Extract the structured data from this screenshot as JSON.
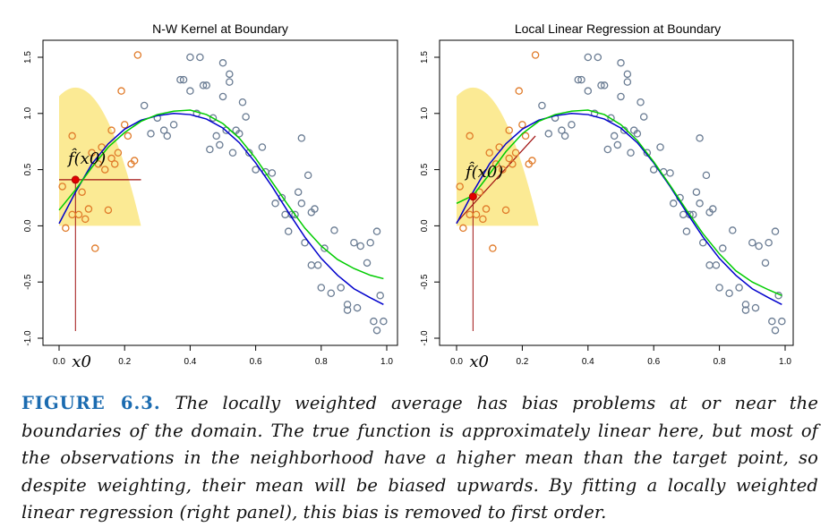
{
  "chart_data": [
    {
      "type": "scatter",
      "title": "N-W Kernel at Boundary",
      "xlabel": "",
      "ylabel": "",
      "xlim": [
        0.0,
        1.0
      ],
      "ylim": [
        -1.0,
        1.5
      ],
      "x_ticks": [
        "0.0",
        "0.2",
        "0.4",
        "0.6",
        "0.8",
        "1.0"
      ],
      "y_ticks": [
        "-1.0",
        "-0.5",
        "0.0",
        "0.5",
        "1.0",
        "1.5"
      ],
      "target_x": 0.05,
      "target_label": "x0",
      "fit_label": "f̂(x0)",
      "fit_value": 0.41,
      "kernel_peak": 1.23,
      "kernel_support": [
        0.0,
        0.25
      ],
      "kernel_color": "#fbea94",
      "fit_line": {
        "x": [
          0.0,
          0.25
        ],
        "y": [
          0.41,
          0.41
        ]
      },
      "fit_color": "#a01010",
      "curves": [
        {
          "color": "#0000cc",
          "x": [
            0.0,
            0.05,
            0.1,
            0.15,
            0.2,
            0.25,
            0.3,
            0.35,
            0.4,
            0.45,
            0.5,
            0.55,
            0.6,
            0.65,
            0.7,
            0.75,
            0.8,
            0.85,
            0.9,
            0.95,
            0.99
          ],
          "y": [
            0.02,
            0.3,
            0.55,
            0.73,
            0.86,
            0.94,
            0.98,
            1.0,
            0.99,
            0.95,
            0.87,
            0.74,
            0.56,
            0.35,
            0.12,
            -0.1,
            -0.29,
            -0.44,
            -0.56,
            -0.64,
            -0.7
          ]
        },
        {
          "color": "#00cc00",
          "x": [
            0.0,
            0.05,
            0.1,
            0.15,
            0.2,
            0.25,
            0.3,
            0.35,
            0.4,
            0.45,
            0.5,
            0.55,
            0.6,
            0.65,
            0.7,
            0.75,
            0.8,
            0.85,
            0.9,
            0.95,
            0.99
          ],
          "y": [
            0.14,
            0.32,
            0.52,
            0.7,
            0.83,
            0.93,
            0.99,
            1.02,
            1.03,
            0.99,
            0.91,
            0.78,
            0.6,
            0.39,
            0.18,
            -0.02,
            -0.18,
            -0.3,
            -0.38,
            -0.44,
            -0.47
          ]
        }
      ],
      "series": [
        {
          "color": "#e07b2a",
          "x": [
            0.01,
            0.02,
            0.04,
            0.04,
            0.06,
            0.07,
            0.08,
            0.09,
            0.1,
            0.11,
            0.12,
            0.13,
            0.14,
            0.15,
            0.16,
            0.16,
            0.17,
            0.18,
            0.19,
            0.2,
            0.21,
            0.22,
            0.23,
            0.24
          ],
          "y": [
            0.35,
            -0.02,
            0.8,
            0.1,
            0.1,
            0.3,
            0.06,
            0.15,
            0.65,
            -0.2,
            0.55,
            0.7,
            0.5,
            0.14,
            0.85,
            0.6,
            0.55,
            0.65,
            1.2,
            0.9,
            0.8,
            0.55,
            0.58,
            1.52
          ]
        },
        {
          "color": "#6a7c93",
          "x": [
            0.26,
            0.28,
            0.3,
            0.32,
            0.33,
            0.35,
            0.37,
            0.38,
            0.4,
            0.4,
            0.42,
            0.43,
            0.44,
            0.45,
            0.46,
            0.47,
            0.48,
            0.49,
            0.5,
            0.5,
            0.51,
            0.52,
            0.52,
            0.53,
            0.54,
            0.55,
            0.56,
            0.57,
            0.58,
            0.6,
            0.62,
            0.63,
            0.65,
            0.66,
            0.68,
            0.69,
            0.7,
            0.71,
            0.72,
            0.73,
            0.74,
            0.74,
            0.75,
            0.76,
            0.77,
            0.77,
            0.78,
            0.79,
            0.8,
            0.81,
            0.83,
            0.84,
            0.86,
            0.88,
            0.88,
            0.9,
            0.91,
            0.92,
            0.94,
            0.95,
            0.96,
            0.97,
            0.97,
            0.98,
            0.99
          ],
          "y": [
            1.07,
            0.82,
            0.96,
            0.85,
            0.8,
            0.9,
            1.3,
            1.3,
            1.5,
            1.2,
            1.0,
            1.5,
            1.25,
            1.25,
            0.68,
            0.96,
            0.8,
            0.72,
            1.15,
            1.45,
            0.85,
            1.35,
            1.28,
            0.65,
            0.85,
            0.82,
            1.1,
            0.97,
            0.65,
            0.5,
            0.7,
            0.48,
            0.47,
            0.2,
            0.25,
            0.1,
            -0.05,
            0.1,
            0.1,
            0.3,
            0.2,
            0.78,
            -0.15,
            0.45,
            -0.35,
            0.12,
            0.15,
            -0.35,
            -0.55,
            -0.2,
            -0.6,
            -0.04,
            -0.55,
            -0.7,
            -0.75,
            -0.15,
            -0.73,
            -0.18,
            -0.33,
            -0.15,
            -0.85,
            -0.05,
            -0.93,
            -0.62,
            -0.85
          ]
        }
      ]
    },
    {
      "type": "scatter",
      "title": "Local Linear Regression at Boundary",
      "xlabel": "",
      "ylabel": "",
      "xlim": [
        0.0,
        1.0
      ],
      "ylim": [
        -1.0,
        1.5
      ],
      "x_ticks": [
        "0.0",
        "0.2",
        "0.4",
        "0.6",
        "0.8",
        "1.0"
      ],
      "y_ticks": [
        "-1.0",
        "-0.5",
        "0.0",
        "0.5",
        "1.0",
        "1.5"
      ],
      "target_x": 0.05,
      "target_label": "x0",
      "fit_label": "f̂(x0)",
      "fit_value": 0.26,
      "kernel_peak": 1.23,
      "kernel_support": [
        0.0,
        0.25
      ],
      "kernel_color": "#fbea94",
      "fit_line": {
        "x": [
          0.0,
          0.24
        ],
        "y": [
          0.03,
          0.8
        ]
      },
      "fit_color": "#a01010",
      "curves": [
        {
          "color": "#0000cc",
          "x": [
            0.0,
            0.05,
            0.1,
            0.15,
            0.2,
            0.25,
            0.3,
            0.35,
            0.4,
            0.45,
            0.5,
            0.55,
            0.6,
            0.65,
            0.7,
            0.75,
            0.8,
            0.85,
            0.9,
            0.95,
            0.99
          ],
          "y": [
            0.02,
            0.3,
            0.55,
            0.73,
            0.86,
            0.94,
            0.98,
            1.0,
            0.99,
            0.95,
            0.87,
            0.74,
            0.56,
            0.35,
            0.12,
            -0.1,
            -0.29,
            -0.44,
            -0.56,
            -0.64,
            -0.7
          ]
        },
        {
          "color": "#00cc00",
          "x": [
            0.0,
            0.05,
            0.1,
            0.15,
            0.2,
            0.25,
            0.3,
            0.35,
            0.4,
            0.45,
            0.5,
            0.55,
            0.6,
            0.65,
            0.7,
            0.75,
            0.8,
            0.85,
            0.9,
            0.95,
            0.99
          ],
          "y": [
            0.2,
            0.27,
            0.46,
            0.66,
            0.82,
            0.93,
            0.99,
            1.02,
            1.03,
            0.99,
            0.9,
            0.76,
            0.57,
            0.36,
            0.14,
            -0.07,
            -0.25,
            -0.4,
            -0.5,
            -0.57,
            -0.62
          ]
        }
      ],
      "series": [
        {
          "color": "#e07b2a",
          "x": [
            0.01,
            0.02,
            0.04,
            0.04,
            0.06,
            0.07,
            0.08,
            0.09,
            0.1,
            0.11,
            0.12,
            0.13,
            0.14,
            0.15,
            0.16,
            0.16,
            0.17,
            0.18,
            0.19,
            0.2,
            0.21,
            0.22,
            0.23,
            0.24
          ],
          "y": [
            0.35,
            -0.02,
            0.8,
            0.1,
            0.1,
            0.3,
            0.06,
            0.15,
            0.65,
            -0.2,
            0.55,
            0.7,
            0.5,
            0.14,
            0.85,
            0.6,
            0.55,
            0.65,
            1.2,
            0.9,
            0.8,
            0.55,
            0.58,
            1.52
          ]
        },
        {
          "color": "#6a7c93",
          "x": [
            0.26,
            0.28,
            0.3,
            0.32,
            0.33,
            0.35,
            0.37,
            0.38,
            0.4,
            0.4,
            0.42,
            0.43,
            0.44,
            0.45,
            0.46,
            0.47,
            0.48,
            0.49,
            0.5,
            0.5,
            0.51,
            0.52,
            0.52,
            0.53,
            0.54,
            0.55,
            0.56,
            0.57,
            0.58,
            0.6,
            0.62,
            0.63,
            0.65,
            0.66,
            0.68,
            0.69,
            0.7,
            0.71,
            0.72,
            0.73,
            0.74,
            0.74,
            0.75,
            0.76,
            0.77,
            0.77,
            0.78,
            0.79,
            0.8,
            0.81,
            0.83,
            0.84,
            0.86,
            0.88,
            0.88,
            0.9,
            0.91,
            0.92,
            0.94,
            0.95,
            0.96,
            0.97,
            0.97,
            0.98,
            0.99
          ],
          "y": [
            1.07,
            0.82,
            0.96,
            0.85,
            0.8,
            0.9,
            1.3,
            1.3,
            1.5,
            1.2,
            1.0,
            1.5,
            1.25,
            1.25,
            0.68,
            0.96,
            0.8,
            0.72,
            1.15,
            1.45,
            0.85,
            1.35,
            1.28,
            0.65,
            0.85,
            0.82,
            1.1,
            0.97,
            0.65,
            0.5,
            0.7,
            0.48,
            0.47,
            0.2,
            0.25,
            0.1,
            -0.05,
            0.1,
            0.1,
            0.3,
            0.2,
            0.78,
            -0.15,
            0.45,
            -0.35,
            0.12,
            0.15,
            -0.35,
            -0.55,
            -0.2,
            -0.6,
            -0.04,
            -0.55,
            -0.7,
            -0.75,
            -0.15,
            -0.73,
            -0.18,
            -0.33,
            -0.15,
            -0.85,
            -0.05,
            -0.93,
            -0.62,
            -0.85
          ]
        }
      ]
    }
  ],
  "caption": {
    "label": "FIGURE 6.3.",
    "text": "The locally weighted average has bias problems at or near the boundaries of the domain. The true function is approximately linear here, but most of the observations in the neighborhood have a higher mean than the target point, so despite weighting, their mean will be biased upwards. By fitting a locally weighted linear regression (right panel), this bias is removed to first order."
  }
}
